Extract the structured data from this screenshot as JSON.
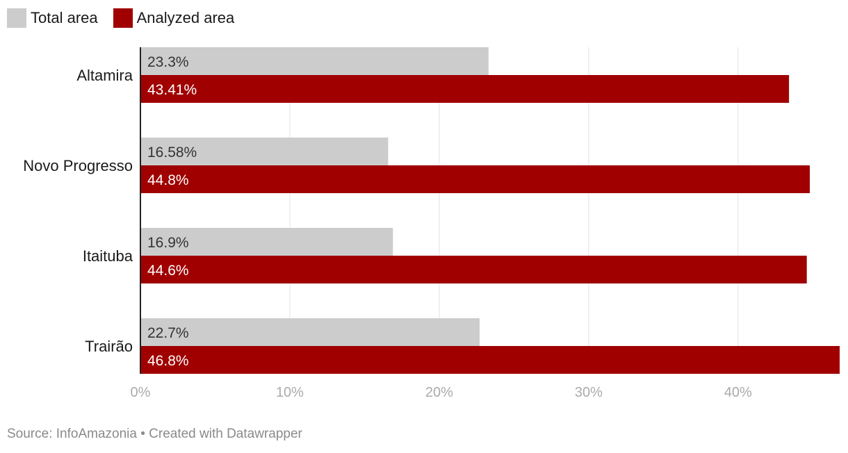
{
  "chart_data": {
    "type": "bar",
    "orientation": "horizontal",
    "categories": [
      "Altamira",
      "Novo Progresso",
      "Itaituba",
      "Trairão"
    ],
    "series": [
      {
        "name": "Total area",
        "values": [
          23.3,
          16.58,
          16.9,
          22.7
        ],
        "labels": [
          "23.3%",
          "16.58%",
          "16.9%",
          "22.7%"
        ],
        "color": "#cccccc"
      },
      {
        "name": "Analyzed area",
        "values": [
          43.41,
          44.8,
          44.6,
          46.8
        ],
        "labels": [
          "43.41%",
          "44.8%",
          "44.6%",
          "46.8%"
        ],
        "color": "#a00000"
      }
    ],
    "xlim": [
      0,
      46.8
    ],
    "xticks": [
      0,
      10,
      20,
      30,
      40
    ],
    "xtick_labels": [
      "0%",
      "10%",
      "20%",
      "30%",
      "40%"
    ],
    "grid": true,
    "legend_position": "top-left"
  },
  "footer": {
    "source": "Source: InfoAmazonia • Created with Datawrapper"
  }
}
